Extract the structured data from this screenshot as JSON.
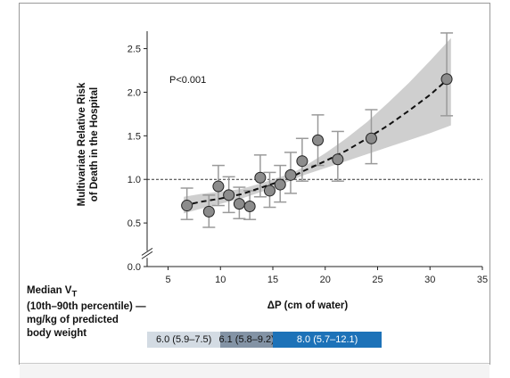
{
  "chart_data": {
    "type": "scatter",
    "xlabel": "ΔP (cm of water)",
    "ylabel_lines": [
      "Multivariate Relative Risk",
      "of Death in the Hospital"
    ],
    "xlim": [
      3,
      35
    ],
    "ylim": [
      0,
      2.7
    ],
    "x_ticks": [
      5,
      10,
      15,
      20,
      25,
      30,
      35
    ],
    "y_ticks": [
      0.0,
      0.5,
      1.0,
      1.5,
      2.0,
      2.5
    ],
    "y_tick_labels": [
      "0.0",
      "0.5",
      "1.0",
      "1.5",
      "2.0",
      "2.5"
    ],
    "y_axis_break": true,
    "annotation": "P<0.001",
    "reference_line": 1.0,
    "points": [
      {
        "x": 6.8,
        "y": 0.7,
        "lo": 0.54,
        "hi": 0.9
      },
      {
        "x": 8.9,
        "y": 0.63,
        "lo": 0.45,
        "hi": 0.82
      },
      {
        "x": 9.8,
        "y": 0.92,
        "lo": 0.7,
        "hi": 1.16
      },
      {
        "x": 10.8,
        "y": 0.82,
        "lo": 0.62,
        "hi": 1.03
      },
      {
        "x": 11.8,
        "y": 0.72,
        "lo": 0.55,
        "hi": 0.91
      },
      {
        "x": 12.8,
        "y": 0.69,
        "lo": 0.54,
        "hi": 0.87
      },
      {
        "x": 13.8,
        "y": 1.02,
        "lo": 0.8,
        "hi": 1.28
      },
      {
        "x": 14.7,
        "y": 0.87,
        "lo": 0.68,
        "hi": 1.08
      },
      {
        "x": 15.7,
        "y": 0.94,
        "lo": 0.74,
        "hi": 1.16
      },
      {
        "x": 16.7,
        "y": 1.05,
        "lo": 0.84,
        "hi": 1.31
      },
      {
        "x": 17.8,
        "y": 1.21,
        "lo": 0.98,
        "hi": 1.47
      },
      {
        "x": 19.3,
        "y": 1.45,
        "lo": 1.16,
        "hi": 1.74
      },
      {
        "x": 21.2,
        "y": 1.23,
        "lo": 0.98,
        "hi": 1.55
      },
      {
        "x": 24.4,
        "y": 1.47,
        "lo": 1.18,
        "hi": 1.8
      },
      {
        "x": 31.6,
        "y": 2.15,
        "lo": 1.73,
        "hi": 2.68
      }
    ],
    "fit_curve": {
      "x": [
        6.5,
        8,
        10,
        12,
        14,
        16,
        17,
        18,
        20,
        22,
        24,
        26,
        28,
        30,
        32
      ],
      "y": [
        0.7,
        0.74,
        0.78,
        0.83,
        0.91,
        0.99,
        1.04,
        1.1,
        1.21,
        1.33,
        1.47,
        1.62,
        1.79,
        1.97,
        2.18
      ],
      "ci_low": [
        0.61,
        0.66,
        0.72,
        0.78,
        0.86,
        0.95,
        1.0,
        1.05,
        1.13,
        1.21,
        1.29,
        1.37,
        1.45,
        1.53,
        1.62
      ],
      "ci_high": [
        0.8,
        0.83,
        0.86,
        0.89,
        0.96,
        1.04,
        1.08,
        1.15,
        1.3,
        1.47,
        1.66,
        1.88,
        2.11,
        2.36,
        2.62
      ]
    },
    "vt_bands": [
      {
        "label": "6.0 (5.9–7.5)",
        "x_start": 3,
        "x_end": 10,
        "color": "#d3dbe3",
        "text_color": "#111111"
      },
      {
        "label": "6.1 (5.8–9.2)",
        "x_start": 10,
        "x_end": 15,
        "color": "#8393a5",
        "text_color": "#111111"
      },
      {
        "label": "8.0 (5.7–12.1)",
        "x_start": 15,
        "x_end": 25.4,
        "color": "#1d72b8",
        "text_color": "#ffffff"
      }
    ]
  },
  "vt_label": {
    "line1": "Median V",
    "subscript": "T",
    "line2": "(10th–90th percentile) —",
    "line3": "mg/kg of predicted",
    "line4": "body weight"
  },
  "colors": {
    "marker_fill": "#8c8c8c",
    "marker_edge": "#222222",
    "error_bar": "#9a9a9a",
    "ci_band": "#cfcfcf",
    "fit_line": "#111111"
  }
}
